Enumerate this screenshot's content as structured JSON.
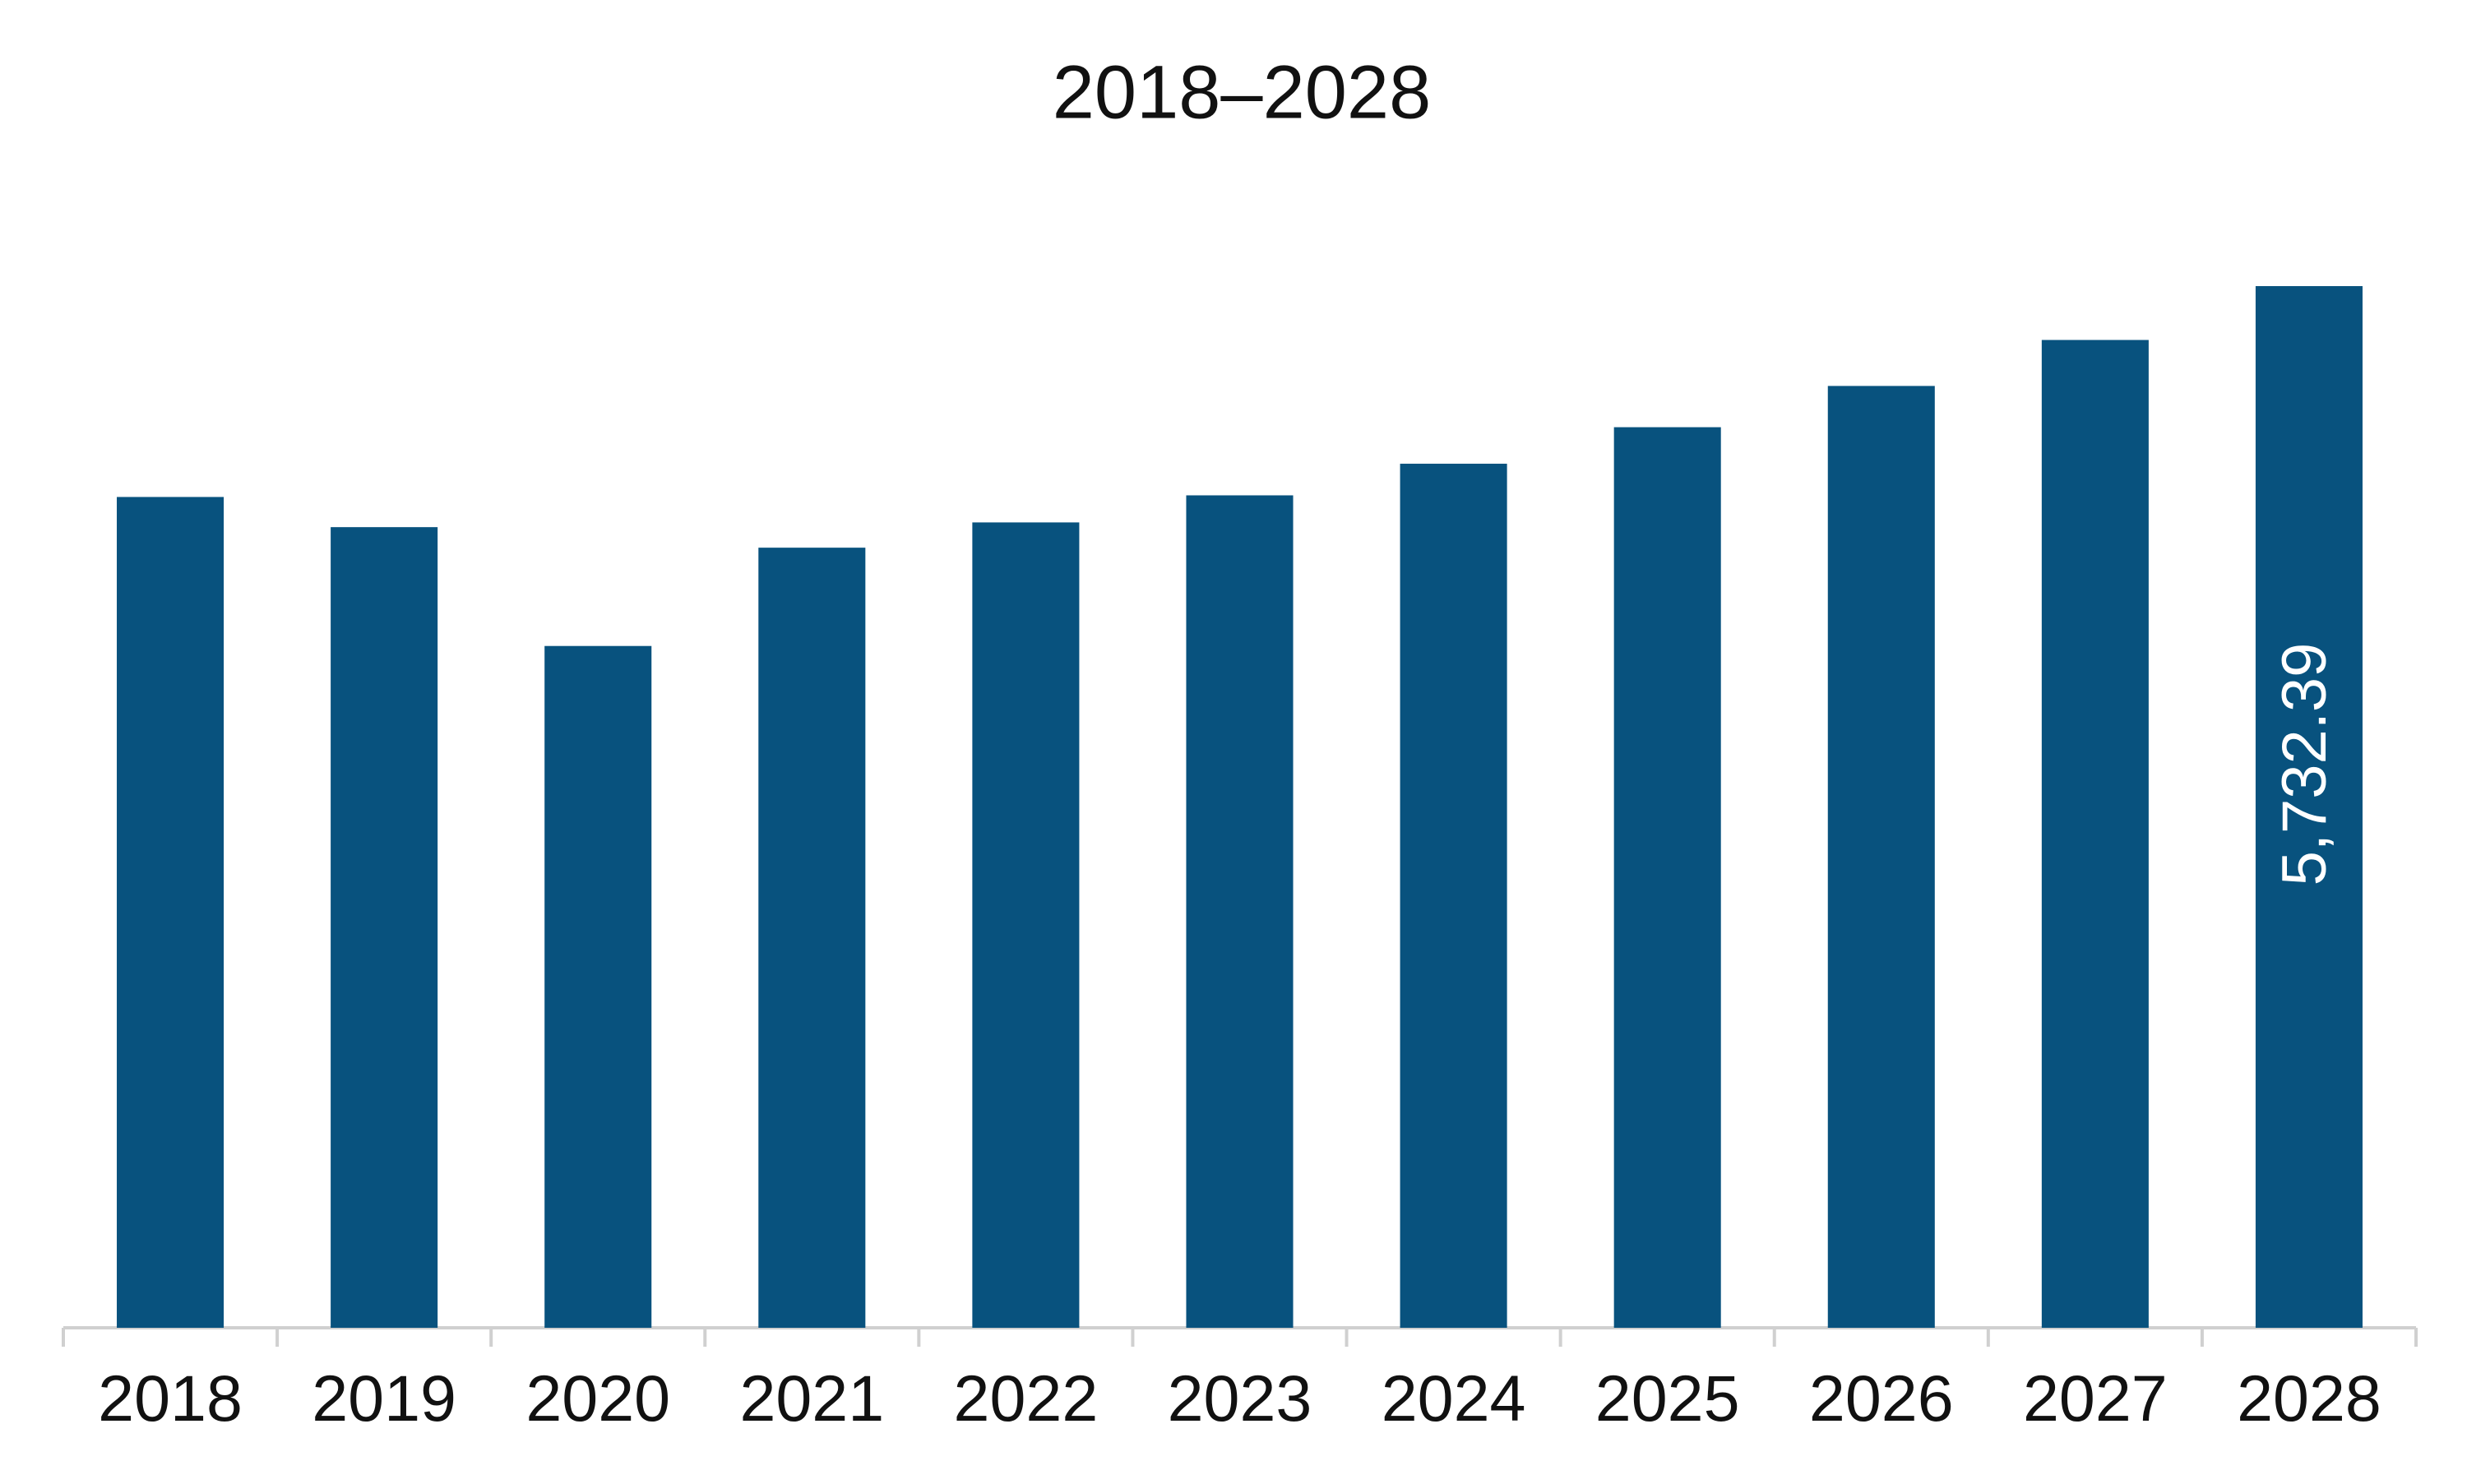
{
  "chart_data": {
    "type": "bar",
    "title": "2018–2028",
    "categories": [
      "2018",
      "2019",
      "2020",
      "2021",
      "2022",
      "2023",
      "2024",
      "2025",
      "2026",
      "2027",
      "2028"
    ],
    "values": [
      4572,
      4406,
      3752,
      4293,
      4432,
      4581,
      4755,
      4956,
      5183,
      5436,
      5732.39
    ],
    "value_labels": [
      null,
      null,
      null,
      null,
      null,
      null,
      null,
      null,
      null,
      null,
      "5,732.39"
    ],
    "color": "#08527e"
  }
}
